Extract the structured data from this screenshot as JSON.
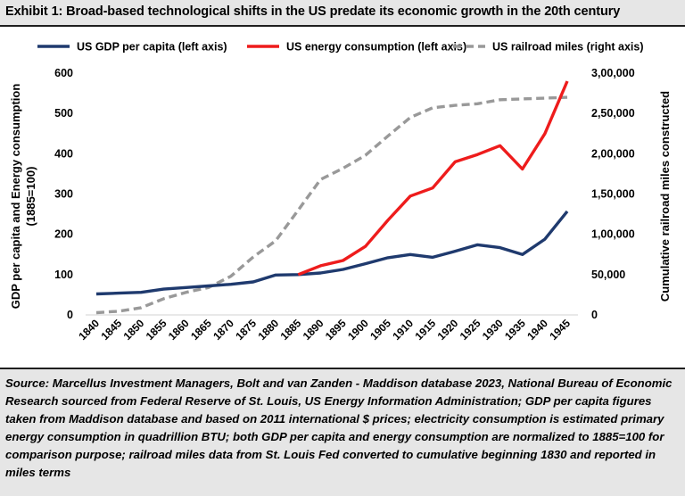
{
  "header": {
    "title": "Exhibit 1: Broad-based technological shifts in the US predate its economic growth in the 20th century"
  },
  "footer": {
    "source": "Source: Marcellus Investment Managers, Bolt and van Zanden - Maddison database 2023, National Bureau of Economic Research sourced from Federal Reserve of St. Louis, US Energy Information Administration; GDP per capita figures taken from Maddison database and based on 2011 international $ prices; electricity consumption is estimated primary energy consumption in quadrillion BTU; both GDP per capita and energy consumption are normalized to 1885=100 for comparison purpose; railroad miles data from St. Louis Fed converted to cumulative beginning 1830 and reported in miles terms"
  },
  "colors": {
    "gdp": "#1f3a6e",
    "energy": "#ee1c1c",
    "rail": "#999999"
  },
  "chart_data": {
    "type": "line",
    "title": "",
    "categories": [
      "1840",
      "1845",
      "1850",
      "1855",
      "1860",
      "1865",
      "1870",
      "1875",
      "1880",
      "1885",
      "1890",
      "1895",
      "1900",
      "1905",
      "1910",
      "1915",
      "1920",
      "1925",
      "1930",
      "1935",
      "1940",
      "1945"
    ],
    "ylabel_left": "GDP per capita and Energy consumption (1885=100)",
    "ylabel_right": "Cumulative railroad miles constructed",
    "ylim_left": [
      0,
      600
    ],
    "yticks_left": [
      "0",
      "100",
      "200",
      "300",
      "400",
      "500",
      "600"
    ],
    "ylim_right": [
      0,
      300000
    ],
    "yticks_right": [
      "0",
      "50,000",
      "1,00,000",
      "1,50,000",
      "2,00,000",
      "2,50,000",
      "3,00,000"
    ],
    "legend_position": "top",
    "series": [
      {
        "name": "US GDP per capita (left axis)",
        "axis": "left",
        "style": "solid",
        "values": [
          52,
          54,
          56,
          64,
          68,
          72,
          76,
          82,
          99,
          100,
          104,
          113,
          127,
          142,
          150,
          143,
          158,
          174,
          167,
          150,
          188,
          257
        ]
      },
      {
        "name": "US energy consumption (left axis)",
        "axis": "left",
        "style": "solid",
        "values": [
          null,
          null,
          null,
          null,
          null,
          null,
          null,
          null,
          null,
          100,
          122,
          135,
          170,
          235,
          295,
          315,
          380,
          398,
          420,
          362,
          450,
          580
        ]
      },
      {
        "name": "US railroad miles (right axis)",
        "axis": "right",
        "style": "dashed",
        "values": [
          2800,
          4500,
          9000,
          20000,
          28000,
          34000,
          48000,
          72000,
          92000,
          130000,
          168000,
          182000,
          198000,
          222000,
          245000,
          257000,
          260000,
          262000,
          267000,
          268000,
          269000,
          270000
        ]
      }
    ]
  }
}
